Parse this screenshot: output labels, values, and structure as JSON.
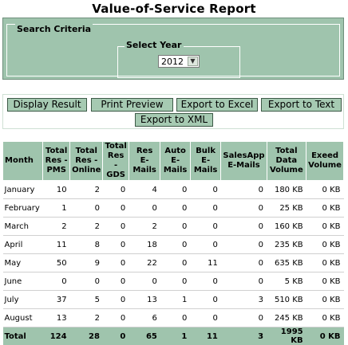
{
  "page": {
    "title": "Value-of-Service Report"
  },
  "criteria": {
    "legend": "Search Criteria",
    "year_legend": "Select Year",
    "year_value": "2012"
  },
  "buttons": {
    "display": "Display Result",
    "print": "Print Preview",
    "excel": "Export to Excel",
    "text": "Export to Text",
    "xml": "Export to XML"
  },
  "table": {
    "headers": [
      [
        "Month"
      ],
      [
        "Total",
        "Res -",
        "PMS"
      ],
      [
        "Total",
        "Res -",
        "Online"
      ],
      [
        "Total",
        "Res -",
        "GDS"
      ],
      [
        "Res",
        "E-Mails"
      ],
      [
        "Auto",
        "E-Mails"
      ],
      [
        "Bulk",
        "E-Mails"
      ],
      [
        "SalesApp",
        "E-Mails"
      ],
      [
        "Total",
        "Data",
        "Volume"
      ],
      [
        "Exeed",
        "Volume"
      ]
    ],
    "rows": [
      [
        "January",
        "10",
        "2",
        "0",
        "4",
        "0",
        "0",
        "0",
        "180 KB",
        "0 KB"
      ],
      [
        "February",
        "1",
        "0",
        "0",
        "0",
        "0",
        "0",
        "0",
        "25 KB",
        "0 KB"
      ],
      [
        "March",
        "2",
        "2",
        "0",
        "2",
        "0",
        "0",
        "0",
        "160 KB",
        "0 KB"
      ],
      [
        "April",
        "11",
        "8",
        "0",
        "18",
        "0",
        "0",
        "0",
        "235 KB",
        "0 KB"
      ],
      [
        "May",
        "50",
        "9",
        "0",
        "22",
        "0",
        "11",
        "0",
        "635 KB",
        "0 KB"
      ],
      [
        "June",
        "0",
        "0",
        "0",
        "0",
        "0",
        "0",
        "0",
        "5 KB",
        "0 KB"
      ],
      [
        "July",
        "37",
        "5",
        "0",
        "13",
        "1",
        "0",
        "3",
        "510 KB",
        "0 KB"
      ],
      [
        "August",
        "13",
        "2",
        "0",
        "6",
        "0",
        "0",
        "0",
        "245 KB",
        "0 KB"
      ]
    ],
    "total": [
      "Total",
      "124",
      "28",
      "0",
      "65",
      "1",
      "11",
      "3",
      "1995 KB",
      "0 KB"
    ]
  },
  "colors": {
    "accent": "#9fc4ad",
    "button": "#a6cab2",
    "border": "#3d5a47"
  }
}
